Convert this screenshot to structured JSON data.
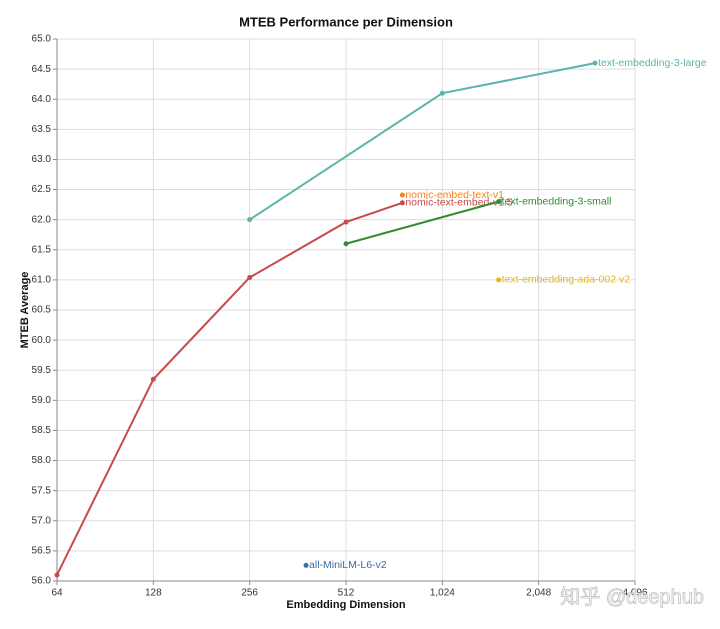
{
  "chart_data": {
    "type": "line",
    "title": "MTEB Performance per Dimension",
    "x_label": "Embedding Dimension",
    "y_label": "MTEB Average",
    "xscale": "log",
    "xlim": [
      64,
      4096
    ],
    "xticks": [
      64,
      128,
      256,
      512,
      {
        "value": 1024,
        "label": "1,024"
      },
      {
        "value": 2048,
        "label": "2,048"
      },
      {
        "value": 4096,
        "label": "4,096"
      }
    ],
    "ylim": [
      56,
      65
    ],
    "yticks": [
      {
        "value": 56,
        "label": "56.0"
      },
      56.5,
      {
        "value": 57,
        "label": "57.0"
      },
      57.5,
      {
        "value": 58,
        "label": "58.0"
      },
      58.5,
      {
        "value": 59,
        "label": "59.0"
      },
      59.5,
      {
        "value": 60,
        "label": "60.0"
      },
      60.5,
      {
        "value": 61,
        "label": "61.0"
      },
      61.5,
      {
        "value": 62,
        "label": "62.0"
      },
      62.5,
      {
        "value": 63,
        "label": "63.0"
      },
      63.5,
      {
        "value": 64,
        "label": "64.0"
      },
      64.5,
      {
        "value": 65,
        "label": "65.0"
      }
    ],
    "grid": true,
    "series": [
      {
        "name": "text-embedding-3-large",
        "color": "#5ab4ac",
        "x": [
          256,
          1024,
          3072
        ],
        "values": [
          62.0,
          64.1,
          64.6
        ]
      },
      {
        "name": "nomic-embed-text-v1",
        "color": "#f58518",
        "x": [
          768
        ],
        "values": [
          62.41
        ]
      },
      {
        "name": "nomic-text-embed-v1.5",
        "color": "#c94a4a",
        "x": [
          64,
          128,
          256,
          512,
          768
        ],
        "values": [
          56.1,
          59.35,
          61.04,
          61.96,
          62.28
        ]
      },
      {
        "name": "text-embedding-3-small",
        "color": "#2f8f2f",
        "x": [
          512,
          1536
        ],
        "values": [
          61.6,
          62.3
        ]
      },
      {
        "name": "text-embedding-ada-002 v2",
        "color": "#e6b820",
        "x": [
          1536
        ],
        "values": [
          61.0
        ]
      },
      {
        "name": "all-MiniLM-L6-v2",
        "color": "#3b6ea5",
        "x": [
          384
        ],
        "values": [
          56.26
        ]
      }
    ],
    "watermark": "知乎 @deephub"
  }
}
